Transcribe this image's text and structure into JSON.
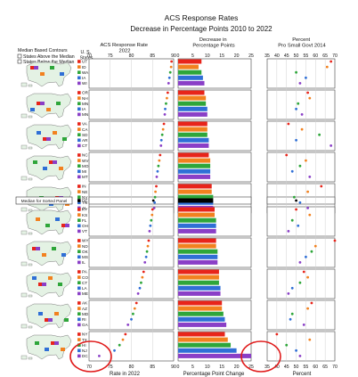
{
  "title": "ACS Response Rates",
  "subtitle": "Decrease in Percentage Points 2010 to 2022",
  "legend": {
    "heading": "Median Based Contours",
    "above": "States Above the Median",
    "below": "States Below the Median",
    "median_label": "Median for Sorted Panel"
  },
  "state_column_header": "U. S. States",
  "panel_headers": {
    "rate": "ACS Response Rate 2022",
    "decrease": "Decrease in Percentage Points",
    "percent": "Percent Pro Small Govt 2014"
  },
  "series_colors": [
    "#e8241a",
    "#f2811f",
    "#2ea63a",
    "#2f6fd6",
    "#8a3fc7"
  ],
  "median_color": "#000000",
  "chart_data": [
    {
      "type": "scatter",
      "title": "ACS Response Rate 2022",
      "xlabel": "Rate in 2022",
      "xlim": [
        70,
        90
      ],
      "xticks": [
        70,
        75,
        80,
        85,
        90
      ],
      "grid": true,
      "values": [
        89.5,
        89.4,
        89.2,
        89.0,
        88.8,
        88.6,
        88.4,
        88.2,
        88.0,
        87.9,
        87.7,
        87.5,
        87.3,
        87.1,
        87.0,
        86.8,
        86.6,
        86.4,
        86.2,
        86.0,
        85.9,
        85.7,
        85.6,
        85.5,
        85.4,
        85.2,
        85.0,
        84.9,
        84.7,
        84.5,
        84.3,
        84.1,
        83.9,
        83.7,
        83.5,
        83.2,
        82.9,
        82.6,
        82.3,
        82.0,
        81.6,
        81.2,
        80.8,
        80.4,
        80.0,
        79.2,
        78.6,
        78.0,
        77.2,
        76.0,
        72.4
      ]
    },
    {
      "type": "bar",
      "title": "Decrease in Percentage Points",
      "xlabel": "Percentage Point Change",
      "xlim": [
        0,
        25
      ],
      "xticks": [
        0,
        5,
        10,
        15,
        20,
        25
      ],
      "categories": [
        "UT",
        "ID",
        "WA",
        "IA",
        "WI",
        "OR",
        "NH",
        "MN",
        "IA",
        "MN",
        "VA",
        "CA",
        "SD",
        "AR",
        "CT",
        "NC",
        "WV",
        "MO",
        "MI",
        "MT",
        "IN",
        "NE",
        "NV",
        "TN",
        "AL",
        "DE",
        "KY",
        "KS",
        "FL",
        "OH",
        "VT",
        "WY",
        "ND",
        "OK",
        "MS",
        "IL",
        "PA",
        "CO",
        "CT",
        "LA",
        "ME",
        "AK",
        "AZ",
        "MD",
        "RI",
        "GA",
        "NY",
        "TX",
        "HI",
        "NJ",
        "DC"
      ],
      "values": [
        8.0,
        7.0,
        8.0,
        8.5,
        9.0,
        9.0,
        9.5,
        9.5,
        10.0,
        10.0,
        10.0,
        10.0,
        10.0,
        10.5,
        10.5,
        10.5,
        11.0,
        11.0,
        11.0,
        11.0,
        11.5,
        11.5,
        12.0,
        12.0,
        12.0,
        12.0,
        12.5,
        12.5,
        13.0,
        13.0,
        13.0,
        13.0,
        13.0,
        13.5,
        13.5,
        13.5,
        14.0,
        14.0,
        14.0,
        14.5,
        14.5,
        15.0,
        15.0,
        15.5,
        16.0,
        16.5,
        16.0,
        17.0,
        18.0,
        20.0,
        25.0
      ]
    },
    {
      "type": "scatter",
      "title": "Percent Pro Small Govt 2014",
      "xlabel": "Percent",
      "xlim": [
        35,
        70
      ],
      "xticks": [
        35,
        40,
        45,
        50,
        55,
        60,
        65,
        70
      ],
      "grid": true,
      "values": [
        68.0,
        66.0,
        50.0,
        55.0,
        52.0,
        56.0,
        57.0,
        51.0,
        50.0,
        53.0,
        46.0,
        53.0,
        62.0,
        50.0,
        68.0,
        45.0,
        55.0,
        52.0,
        48.0,
        57.0,
        63.0,
        56.0,
        49.0,
        52.0,
        56.0,
        50.0,
        50.0,
        57.0,
        48.0,
        51.0,
        46.0,
        70.0,
        60.0,
        58.0,
        55.0,
        52.0,
        54.0,
        56.0,
        52.0,
        48.0,
        46.0,
        58.0,
        56.0,
        48.0,
        47.0,
        54.0,
        40.0,
        57.0,
        45.0,
        50.0,
        52.0
      ]
    }
  ]
}
